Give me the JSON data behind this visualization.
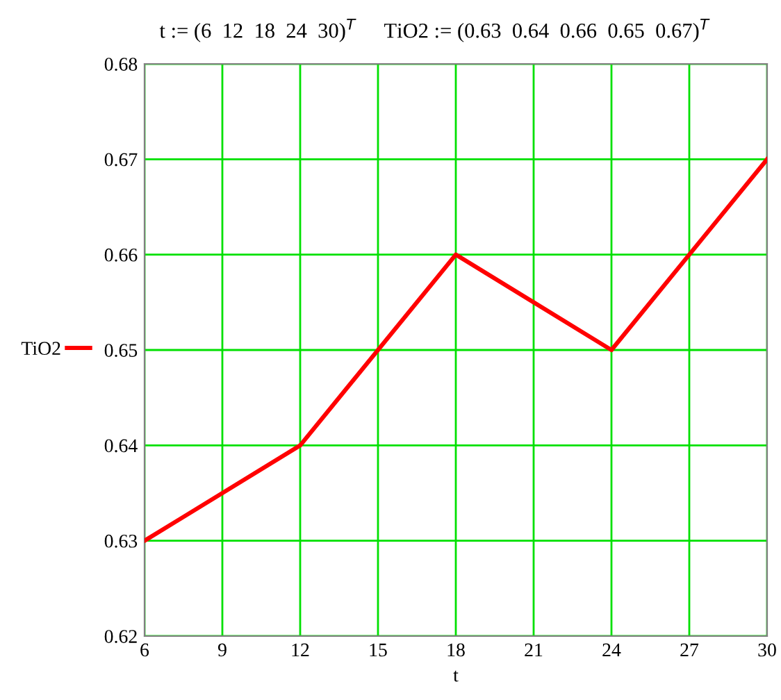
{
  "chart_data": {
    "type": "line",
    "xlabel": "t",
    "annotations": [
      "t := (6  12  18  24  30)$^{T}$",
      "TiO2 := (0.63  0.64  0.66  0.65  0.67)$^{T}$"
    ],
    "x": [
      6,
      12,
      18,
      24,
      30
    ],
    "series": [
      {
        "name": "TiO2",
        "color": "#ff0000",
        "values": [
          0.63,
          0.64,
          0.66,
          0.65,
          0.67
        ]
      }
    ],
    "xlim": [
      6,
      30
    ],
    "xticks": [
      6,
      9,
      12,
      15,
      18,
      21,
      24,
      27,
      30
    ],
    "ylim": [
      0.62,
      0.68
    ],
    "yticks": [
      0.62,
      0.63,
      0.64,
      0.65,
      0.66,
      0.67,
      0.68
    ],
    "grid": true,
    "legend": "left",
    "line_style": "solid"
  }
}
